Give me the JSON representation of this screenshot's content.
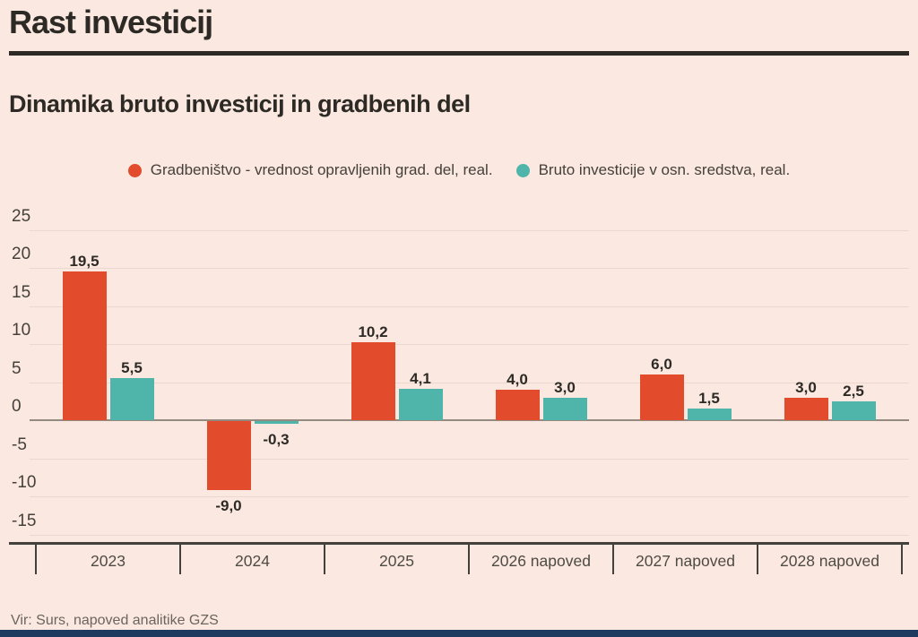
{
  "page": {
    "title": "Rast investicij",
    "subtitle": "Dinamika bruto investicij in gradbenih del",
    "source": "Vir: Surs, napoved analitike GZS"
  },
  "colors": {
    "background": "#fbe9e1",
    "title_text": "#2d2a26",
    "rule": "#2d2a26",
    "grid": "#ead7ce",
    "zero_line": "#948a80",
    "axis": "#44403b",
    "value_text": "#2d2a26",
    "axis_text": "#45403a",
    "category_text": "#4e4a44",
    "source_text": "#6b655d",
    "footer_bar": "#1e3a5f",
    "series1": "#e24b2c",
    "series2": "#4fb5aa"
  },
  "chart_data": {
    "type": "bar",
    "title": "Dinamika bruto investicij in gradbenih del",
    "categories": [
      "2023",
      "2024",
      "2025",
      "2026 napoved",
      "2027 napoved",
      "2028 napoved"
    ],
    "series": [
      {
        "name": "Gradbeništvo - vrednost opravljenih grad. del, real.",
        "color": "#e24b2c",
        "values": [
          19.5,
          -9.0,
          10.2,
          4.0,
          6.0,
          3.0
        ],
        "labels": [
          "19,5",
          "-9,0",
          "10,2",
          "4,0",
          "6,0",
          "3,0"
        ]
      },
      {
        "name": "Bruto investicije v osn. sredstva, real.",
        "color": "#4fb5aa",
        "values": [
          5.5,
          -0.3,
          4.1,
          3.0,
          1.5,
          2.5
        ],
        "labels": [
          "5,5",
          "-0,3",
          "4,1",
          "3,0",
          "1,5",
          "2,5"
        ]
      }
    ],
    "y_ticks": [
      25,
      20,
      15,
      10,
      5,
      0,
      -5,
      -10,
      -15
    ],
    "y_tick_labels": [
      "25",
      "20",
      "15",
      "10",
      "5",
      "0",
      "-5",
      "-10",
      "-15"
    ],
    "ylim": [
      -17,
      27
    ],
    "grid": true,
    "legend_position": "top",
    "xlabel": "",
    "ylabel": ""
  }
}
